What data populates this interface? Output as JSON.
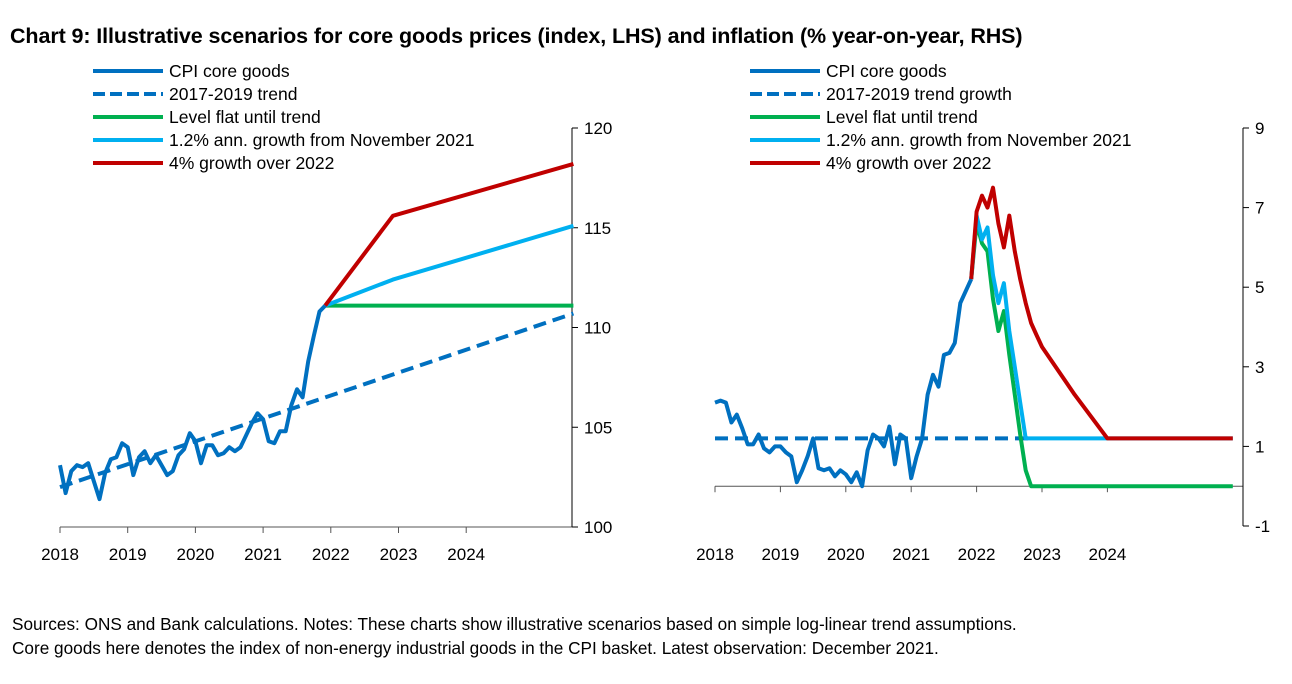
{
  "title": "Chart 9: Illustrative scenarios for core goods prices (index, LHS) and inflation (% year-on-year, RHS)",
  "notes": [
    "Sources: ONS and Bank calculations. Notes: These charts show illustrative scenarios based on simple log-linear trend assumptions.",
    "Core goods here denotes the index of non-energy industrial goods in the CPI basket. Latest observation: December 2021."
  ],
  "colors": {
    "cpi": "#0070C0",
    "trend": "#0070C0",
    "flat": "#00B050",
    "growth12": "#00B0F0",
    "growth4": "#C00000",
    "axis": "#000000"
  },
  "chart_data": [
    {
      "type": "line",
      "name": "left",
      "title": "Core goods prices (index)",
      "xlabel": "",
      "ylabel": "index",
      "y_axis_side": "right",
      "ylim": [
        100,
        120
      ],
      "yticks": [
        "100",
        "105",
        "110",
        "115",
        "120"
      ],
      "xticks": [
        "2018",
        "2019",
        "2020",
        "2021",
        "2022",
        "2023",
        "2024"
      ],
      "x_unit": "month index from Jan 2018",
      "x_range": [
        0,
        91
      ],
      "grid": false,
      "legend_position": "top-left",
      "series": [
        {
          "name": "CPI core goods",
          "key": "cpi",
          "style": "solid",
          "x": [
            0,
            1,
            2,
            3,
            4,
            5,
            6,
            7,
            8,
            9,
            10,
            11,
            12,
            13,
            14,
            15,
            16,
            17,
            18,
            19,
            20,
            21,
            22,
            23,
            24,
            25,
            26,
            27,
            28,
            29,
            30,
            31,
            32,
            33,
            34,
            35,
            36,
            37,
            38,
            39,
            40,
            41,
            42,
            43,
            44,
            45,
            46,
            47
          ],
          "values": [
            103.1,
            101.7,
            102.8,
            103.1,
            103.0,
            103.2,
            102.3,
            101.4,
            102.7,
            103.4,
            103.5,
            104.2,
            104.0,
            102.6,
            103.5,
            103.8,
            103.2,
            103.6,
            103.1,
            102.6,
            102.8,
            103.6,
            103.9,
            104.7,
            104.3,
            103.2,
            104.1,
            104.1,
            103.6,
            103.7,
            104.0,
            103.8,
            104.0,
            104.6,
            105.2,
            105.7,
            105.4,
            104.3,
            104.2,
            104.8,
            104.8,
            106.1,
            106.9,
            106.5,
            108.3,
            109.6,
            110.8,
            111.1
          ]
        },
        {
          "name": "2017-2019 trend",
          "key": "trend",
          "style": "dashed",
          "x": [
            0,
            91
          ],
          "values": [
            102.0,
            110.7
          ]
        },
        {
          "name": "Level flat until trend",
          "key": "flat",
          "style": "solid",
          "x": [
            47,
            91
          ],
          "values": [
            111.1,
            111.1
          ]
        },
        {
          "name": "1.2% ann. growth from November  2021",
          "key": "growth12",
          "style": "solid",
          "x": [
            47,
            59,
            91
          ],
          "values": [
            111.1,
            112.4,
            115.1
          ]
        },
        {
          "name": "4% growth over 2022",
          "key": "growth4",
          "style": "solid",
          "x": [
            47,
            59,
            91
          ],
          "values": [
            111.1,
            115.6,
            118.2
          ]
        }
      ]
    },
    {
      "type": "line",
      "name": "right",
      "title": "Core goods inflation (% year-on-year)",
      "xlabel": "",
      "ylabel": "% year-on-year",
      "y_axis_side": "right",
      "ylim": [
        -1,
        9
      ],
      "yticks": [
        "-1",
        "1",
        "3",
        "5",
        "7",
        "9"
      ],
      "xticks": [
        "2018",
        "2019",
        "2020",
        "2021",
        "2022",
        "2023",
        "2024"
      ],
      "x_unit": "month index from Jan 2018",
      "x_range": [
        0,
        95
      ],
      "grid": false,
      "legend_position": "top-left",
      "series": [
        {
          "name": "CPI core goods",
          "key": "cpi",
          "style": "solid",
          "x": [
            0,
            1,
            2,
            3,
            4,
            5,
            6,
            7,
            8,
            9,
            10,
            11,
            12,
            13,
            14,
            15,
            16,
            17,
            18,
            19,
            20,
            21,
            22,
            23,
            24,
            25,
            26,
            27,
            28,
            29,
            30,
            31,
            32,
            33,
            34,
            35,
            36,
            37,
            38,
            39,
            40,
            41,
            42,
            43,
            44,
            45,
            46,
            47
          ],
          "values": [
            2.1,
            2.15,
            2.1,
            1.6,
            1.8,
            1.45,
            1.05,
            1.05,
            1.3,
            0.95,
            0.85,
            1.0,
            1.0,
            0.85,
            0.75,
            0.1,
            0.4,
            0.75,
            1.2,
            0.45,
            0.4,
            0.45,
            0.25,
            0.4,
            0.3,
            0.1,
            0.35,
            0.0,
            0.9,
            1.3,
            1.2,
            1.0,
            1.5,
            0.55,
            1.3,
            1.2,
            0.2,
            0.75,
            1.2,
            2.3,
            2.8,
            2.5,
            3.3,
            3.35,
            3.6,
            4.6,
            4.9,
            5.2
          ]
        },
        {
          "name": "2017-2019 trend growth",
          "key": "trend",
          "style": "dashed",
          "x": [
            0,
            58
          ],
          "values": [
            1.2,
            1.2
          ]
        },
        {
          "name": "Level flat until trend",
          "key": "flat",
          "style": "solid",
          "x": [
            47,
            48,
            49,
            50,
            51,
            52,
            53,
            54,
            55,
            56,
            57,
            58,
            59,
            60,
            95
          ],
          "values": [
            5.2,
            6.6,
            6.1,
            5.9,
            4.7,
            3.9,
            4.4,
            3.3,
            2.3,
            1.3,
            0.4,
            0.0,
            0.0,
            0.0,
            0.0
          ]
        },
        {
          "name": "1.2% ann. growth from November  2021",
          "key": "growth12",
          "style": "solid",
          "x": [
            47,
            48,
            49,
            50,
            51,
            52,
            53,
            54,
            55,
            56,
            57,
            58,
            59,
            60,
            72,
            95
          ],
          "values": [
            5.2,
            6.8,
            6.2,
            6.5,
            5.3,
            4.6,
            5.1,
            3.9,
            3.0,
            2.1,
            1.2,
            1.2,
            1.2,
            1.2,
            1.2,
            1.2
          ]
        },
        {
          "name": "4% growth over 2022",
          "key": "growth4",
          "style": "solid",
          "x": [
            47,
            48,
            49,
            50,
            51,
            52,
            53,
            54,
            55,
            56,
            57,
            58,
            59,
            60,
            66,
            72,
            95
          ],
          "values": [
            5.2,
            6.9,
            7.3,
            7.0,
            7.5,
            6.6,
            6.0,
            6.8,
            5.9,
            5.2,
            4.6,
            4.1,
            3.8,
            3.5,
            2.3,
            1.2,
            1.2
          ]
        }
      ]
    }
  ]
}
